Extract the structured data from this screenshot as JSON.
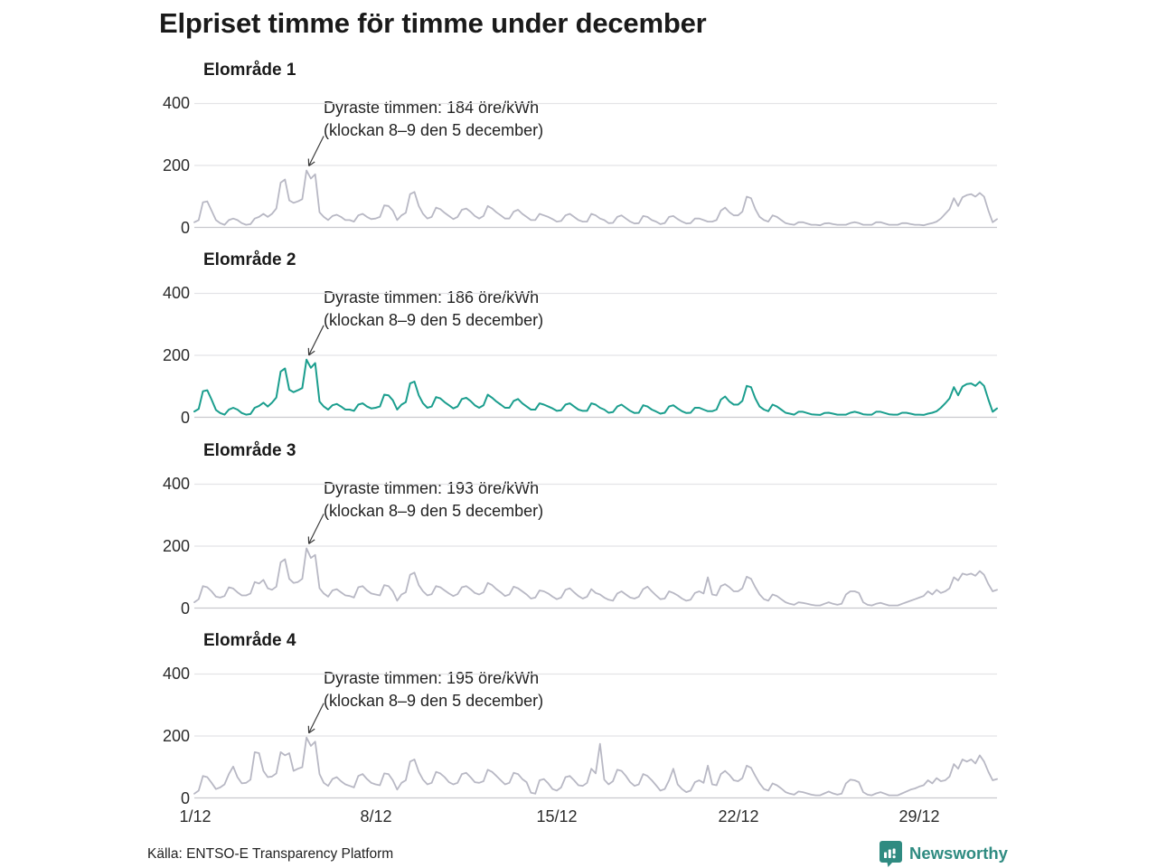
{
  "header": {
    "title": "Elpriset timme för timme under december"
  },
  "footer": {
    "source": "Källa: ENTSO-E Transparency Platform",
    "brand": "Newsworthy"
  },
  "colors": {
    "accent_teal": "#1b9e8e",
    "line_gray": "#b8b8c4",
    "brand_teal": "#2f8b81",
    "grid": "#e4e4e7",
    "baseline": "#c9c9cd",
    "arrow": "#3a3a3a"
  },
  "chart_data": {
    "type": "line",
    "title": "Elpriset timme för timme under december",
    "layout": "4 stacked small-multiple panels, shared x axis",
    "x_tick_labels": [
      "1/12",
      "8/12",
      "15/12",
      "22/12",
      "29/12"
    ],
    "x_tick_days": [
      1,
      8,
      15,
      22,
      29
    ],
    "x_range_days": [
      1,
      31
    ],
    "y_ticks": [
      0,
      200,
      400
    ],
    "ylim": [
      0,
      400
    ],
    "y_unit": "öre/kWh",
    "sample_interval_hours": 4,
    "grid": "horizontal-only",
    "panels": [
      {
        "title": "Elområde 1",
        "color": "#b8b8c4",
        "peak": {
          "value": 184,
          "time": "klockan 8–9 den 5 december",
          "label_line1": "Dyraste timmen: 184 öre/kWh",
          "label_line2": "(klockan 8–9 den 5 december)",
          "peak_index": 26
        },
        "values": [
          18,
          25,
          82,
          85,
          55,
          25,
          15,
          10,
          25,
          30,
          25,
          15,
          10,
          12,
          30,
          35,
          45,
          35,
          45,
          62,
          145,
          155,
          88,
          80,
          85,
          92,
          184,
          158,
          172,
          50,
          35,
          25,
          38,
          42,
          35,
          25,
          25,
          20,
          40,
          45,
          35,
          28,
          30,
          35,
          72,
          70,
          55,
          25,
          40,
          48,
          108,
          115,
          70,
          45,
          30,
          35,
          65,
          60,
          48,
          38,
          28,
          35,
          58,
          62,
          52,
          38,
          30,
          38,
          70,
          62,
          50,
          40,
          30,
          30,
          52,
          58,
          45,
          35,
          25,
          25,
          45,
          40,
          35,
          28,
          20,
          22,
          40,
          45,
          35,
          25,
          20,
          20,
          45,
          40,
          30,
          25,
          15,
          16,
          35,
          40,
          30,
          20,
          14,
          15,
          38,
          35,
          25,
          20,
          12,
          15,
          35,
          38,
          28,
          20,
          14,
          15,
          30,
          30,
          25,
          20,
          20,
          25,
          55,
          65,
          50,
          40,
          40,
          52,
          100,
          95,
          60,
          35,
          25,
          20,
          40,
          35,
          25,
          15,
          12,
          10,
          18,
          18,
          14,
          10,
          10,
          8,
          14,
          15,
          12,
          10,
          10,
          10,
          15,
          18,
          15,
          10,
          10,
          10,
          18,
          18,
          14,
          10,
          10,
          10,
          15,
          15,
          12,
          10,
          10,
          8,
          12,
          15,
          20,
          30,
          45,
          60,
          95,
          70,
          98,
          105,
          108,
          100,
          112,
          100,
          55,
          18,
          28
        ]
      },
      {
        "title": "Elområde 2",
        "color": "#1b9e8e",
        "peak": {
          "value": 186,
          "time": "klockan 8–9 den 5 december",
          "label_line1": "Dyraste timmen: 186 öre/kWh",
          "label_line2": "(klockan 8–9 den 5 december)",
          "peak_index": 26
        },
        "values": [
          20,
          28,
          85,
          88,
          58,
          25,
          15,
          10,
          26,
          32,
          26,
          15,
          10,
          12,
          32,
          38,
          48,
          36,
          48,
          65,
          148,
          158,
          90,
          82,
          88,
          95,
          186,
          160,
          175,
          52,
          36,
          26,
          40,
          44,
          36,
          26,
          26,
          22,
          42,
          46,
          36,
          30,
          32,
          36,
          74,
          72,
          56,
          26,
          42,
          50,
          110,
          116,
          72,
          46,
          32,
          36,
          66,
          62,
          50,
          40,
          30,
          36,
          60,
          64,
          54,
          40,
          32,
          40,
          74,
          64,
          52,
          42,
          32,
          32,
          54,
          60,
          46,
          36,
          26,
          26,
          46,
          42,
          36,
          30,
          22,
          24,
          42,
          46,
          36,
          26,
          22,
          22,
          46,
          42,
          32,
          26,
          16,
          18,
          36,
          42,
          32,
          22,
          15,
          16,
          40,
          36,
          26,
          20,
          13,
          16,
          36,
          40,
          30,
          21,
          15,
          16,
          32,
          32,
          26,
          21,
          21,
          26,
          58,
          68,
          52,
          42,
          42,
          54,
          102,
          98,
          62,
          36,
          26,
          21,
          42,
          36,
          26,
          16,
          13,
          10,
          19,
          19,
          15,
          11,
          10,
          9,
          15,
          16,
          13,
          10,
          10,
          10,
          16,
          19,
          16,
          11,
          10,
          10,
          19,
          19,
          15,
          11,
          10,
          10,
          16,
          16,
          13,
          10,
          10,
          9,
          13,
          16,
          21,
          32,
          46,
          62,
          98,
          72,
          100,
          108,
          110,
          102,
          115,
          102,
          58,
          19,
          30
        ]
      },
      {
        "title": "Elområde 3",
        "color": "#b8b8c4",
        "peak": {
          "value": 193,
          "time": "klockan 8–9 den 5 december",
          "label_line1": "Dyraste timmen: 193 öre/kWh",
          "label_line2": "(klockan 8–9 den 5 december)",
          "peak_index": 26
        },
        "values": [
          20,
          30,
          72,
          68,
          55,
          38,
          35,
          40,
          68,
          64,
          52,
          42,
          42,
          48,
          85,
          80,
          92,
          65,
          60,
          70,
          148,
          158,
          95,
          82,
          85,
          95,
          193,
          162,
          172,
          65,
          48,
          38,
          58,
          62,
          52,
          42,
          40,
          35,
          68,
          72,
          58,
          48,
          45,
          42,
          75,
          72,
          55,
          25,
          45,
          52,
          108,
          115,
          75,
          55,
          42,
          46,
          72,
          68,
          58,
          48,
          40,
          46,
          68,
          72,
          62,
          50,
          45,
          52,
          82,
          75,
          62,
          52,
          40,
          45,
          70,
          65,
          55,
          45,
          32,
          35,
          58,
          55,
          48,
          38,
          30,
          35,
          60,
          65,
          52,
          40,
          32,
          38,
          62,
          50,
          45,
          35,
          28,
          25,
          48,
          55,
          45,
          35,
          32,
          38,
          62,
          70,
          55,
          42,
          30,
          32,
          55,
          50,
          42,
          32,
          25,
          28,
          50,
          55,
          48,
          100,
          45,
          42,
          72,
          78,
          68,
          55,
          55,
          65,
          102,
          95,
          68,
          45,
          30,
          25,
          45,
          40,
          30,
          20,
          15,
          12,
          20,
          18,
          15,
          12,
          10,
          10,
          15,
          20,
          15,
          12,
          15,
          45,
          55,
          55,
          50,
          20,
          12,
          10,
          15,
          18,
          14,
          10,
          10,
          10,
          15,
          20,
          25,
          30,
          35,
          40,
          55,
          45,
          60,
          50,
          55,
          65,
          100,
          90,
          112,
          108,
          112,
          105,
          120,
          108,
          78,
          55,
          60
        ]
      },
      {
        "title": "Elområde 4",
        "color": "#b8b8c4",
        "peak": {
          "value": 195,
          "time": "klockan 8–9 den 5 december",
          "label_line1": "Dyraste timmen: 195 öre/kWh",
          "label_line2": "(klockan 8–9 den 5 december)",
          "peak_index": 26
        },
        "values": [
          15,
          25,
          72,
          68,
          50,
          30,
          35,
          45,
          78,
          102,
          68,
          48,
          50,
          60,
          148,
          145,
          88,
          68,
          70,
          80,
          148,
          138,
          145,
          88,
          95,
          100,
          195,
          168,
          182,
          78,
          50,
          40,
          62,
          68,
          55,
          45,
          40,
          35,
          72,
          78,
          62,
          50,
          45,
          42,
          80,
          78,
          58,
          28,
          50,
          58,
          118,
          125,
          85,
          60,
          45,
          50,
          85,
          80,
          68,
          52,
          45,
          50,
          78,
          82,
          68,
          52,
          50,
          55,
          92,
          85,
          72,
          58,
          45,
          50,
          82,
          78,
          62,
          52,
          18,
          15,
          58,
          62,
          48,
          30,
          25,
          35,
          68,
          72,
          58,
          42,
          40,
          50,
          95,
          80,
          175,
          60,
          45,
          55,
          92,
          88,
          72,
          52,
          40,
          45,
          78,
          72,
          58,
          42,
          25,
          30,
          58,
          95,
          45,
          30,
          20,
          25,
          52,
          58,
          50,
          105,
          45,
          42,
          78,
          88,
          75,
          58,
          55,
          65,
          105,
          98,
          72,
          48,
          30,
          25,
          48,
          42,
          32,
          20,
          15,
          12,
          22,
          20,
          16,
          12,
          10,
          10,
          16,
          22,
          16,
          12,
          15,
          48,
          60,
          58,
          52,
          20,
          12,
          10,
          16,
          20,
          15,
          10,
          10,
          10,
          16,
          22,
          28,
          32,
          38,
          42,
          58,
          48,
          65,
          55,
          58,
          70,
          110,
          95,
          125,
          118,
          125,
          112,
          138,
          118,
          85,
          58,
          62
        ]
      }
    ]
  }
}
